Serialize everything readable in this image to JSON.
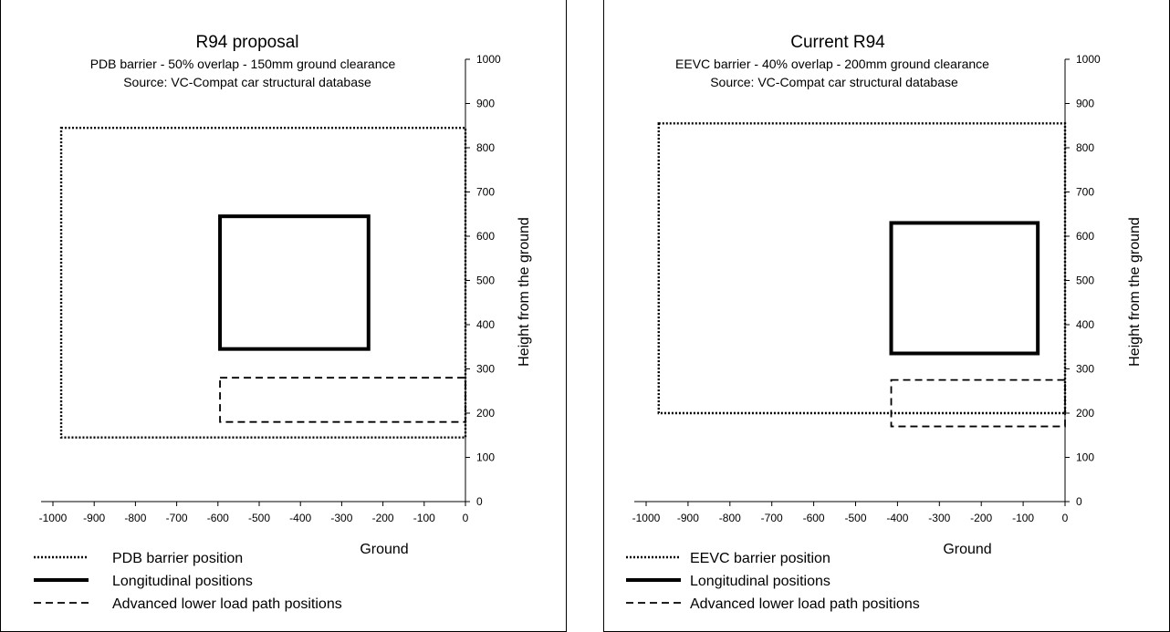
{
  "chart_data": [
    {
      "type": "diagram",
      "title": "R94 proposal",
      "subtitle_lines": [
        "PDB barrier - 50% overlap - 150mm ground clearance",
        "Source: VC-Compat car structural database"
      ],
      "xlabel": "Ground",
      "ylabel": "Height from the ground",
      "xlim": [
        -1000,
        0
      ],
      "ylim": [
        0,
        1000
      ],
      "x_ticks": [
        "-1000",
        "-900",
        "-800",
        "-700",
        "-600",
        "-500",
        "-400",
        "-300",
        "-200",
        "-100",
        "0"
      ],
      "y_ticks": [
        "0",
        "100",
        "200",
        "300",
        "400",
        "500",
        "600",
        "700",
        "800",
        "900",
        "1000"
      ],
      "shapes": [
        {
          "series": "barrier",
          "x": [
            -980,
            0
          ],
          "y": [
            145,
            845
          ]
        },
        {
          "series": "longitudinal",
          "x": [
            -595,
            -235
          ],
          "y": [
            345,
            645
          ]
        },
        {
          "series": "lower_load",
          "x": [
            -595,
            0
          ],
          "y": [
            180,
            280
          ]
        }
      ],
      "legend": [
        {
          "series": "barrier",
          "style": "dotted",
          "label": "PDB barrier position"
        },
        {
          "series": "longitudinal",
          "style": "solid",
          "label": "Longitudinal positions"
        },
        {
          "series": "lower_load",
          "style": "dashed",
          "label": "Advanced lower load path positions"
        }
      ]
    },
    {
      "type": "diagram",
      "title": "Current R94",
      "subtitle_lines": [
        "EEVC barrier - 40% overlap - 200mm ground clearance",
        "Source: VC-Compat car structural database"
      ],
      "xlabel": "Ground",
      "ylabel": "Height from the ground",
      "xlim": [
        -1000,
        0
      ],
      "ylim": [
        0,
        1000
      ],
      "x_ticks": [
        "-1000",
        "-900",
        "-800",
        "-700",
        "-600",
        "-500",
        "-400",
        "-300",
        "-200",
        "-100",
        "0"
      ],
      "y_ticks": [
        "0",
        "100",
        "200",
        "300",
        "400",
        "500",
        "600",
        "700",
        "800",
        "900",
        "1000"
      ],
      "shapes": [
        {
          "series": "barrier",
          "x": [
            -970,
            0
          ],
          "y": [
            200,
            855
          ]
        },
        {
          "series": "longitudinal",
          "x": [
            -415,
            -65
          ],
          "y": [
            335,
            630
          ]
        },
        {
          "series": "lower_load",
          "x": [
            -415,
            0
          ],
          "y": [
            170,
            275
          ]
        }
      ],
      "legend": [
        {
          "series": "barrier",
          "style": "dotted",
          "label": "EEVC barrier position"
        },
        {
          "series": "longitudinal",
          "style": "solid",
          "label": "Longitudinal positions"
        },
        {
          "series": "lower_load",
          "style": "dashed",
          "label": "Advanced lower load path positions"
        }
      ]
    }
  ]
}
